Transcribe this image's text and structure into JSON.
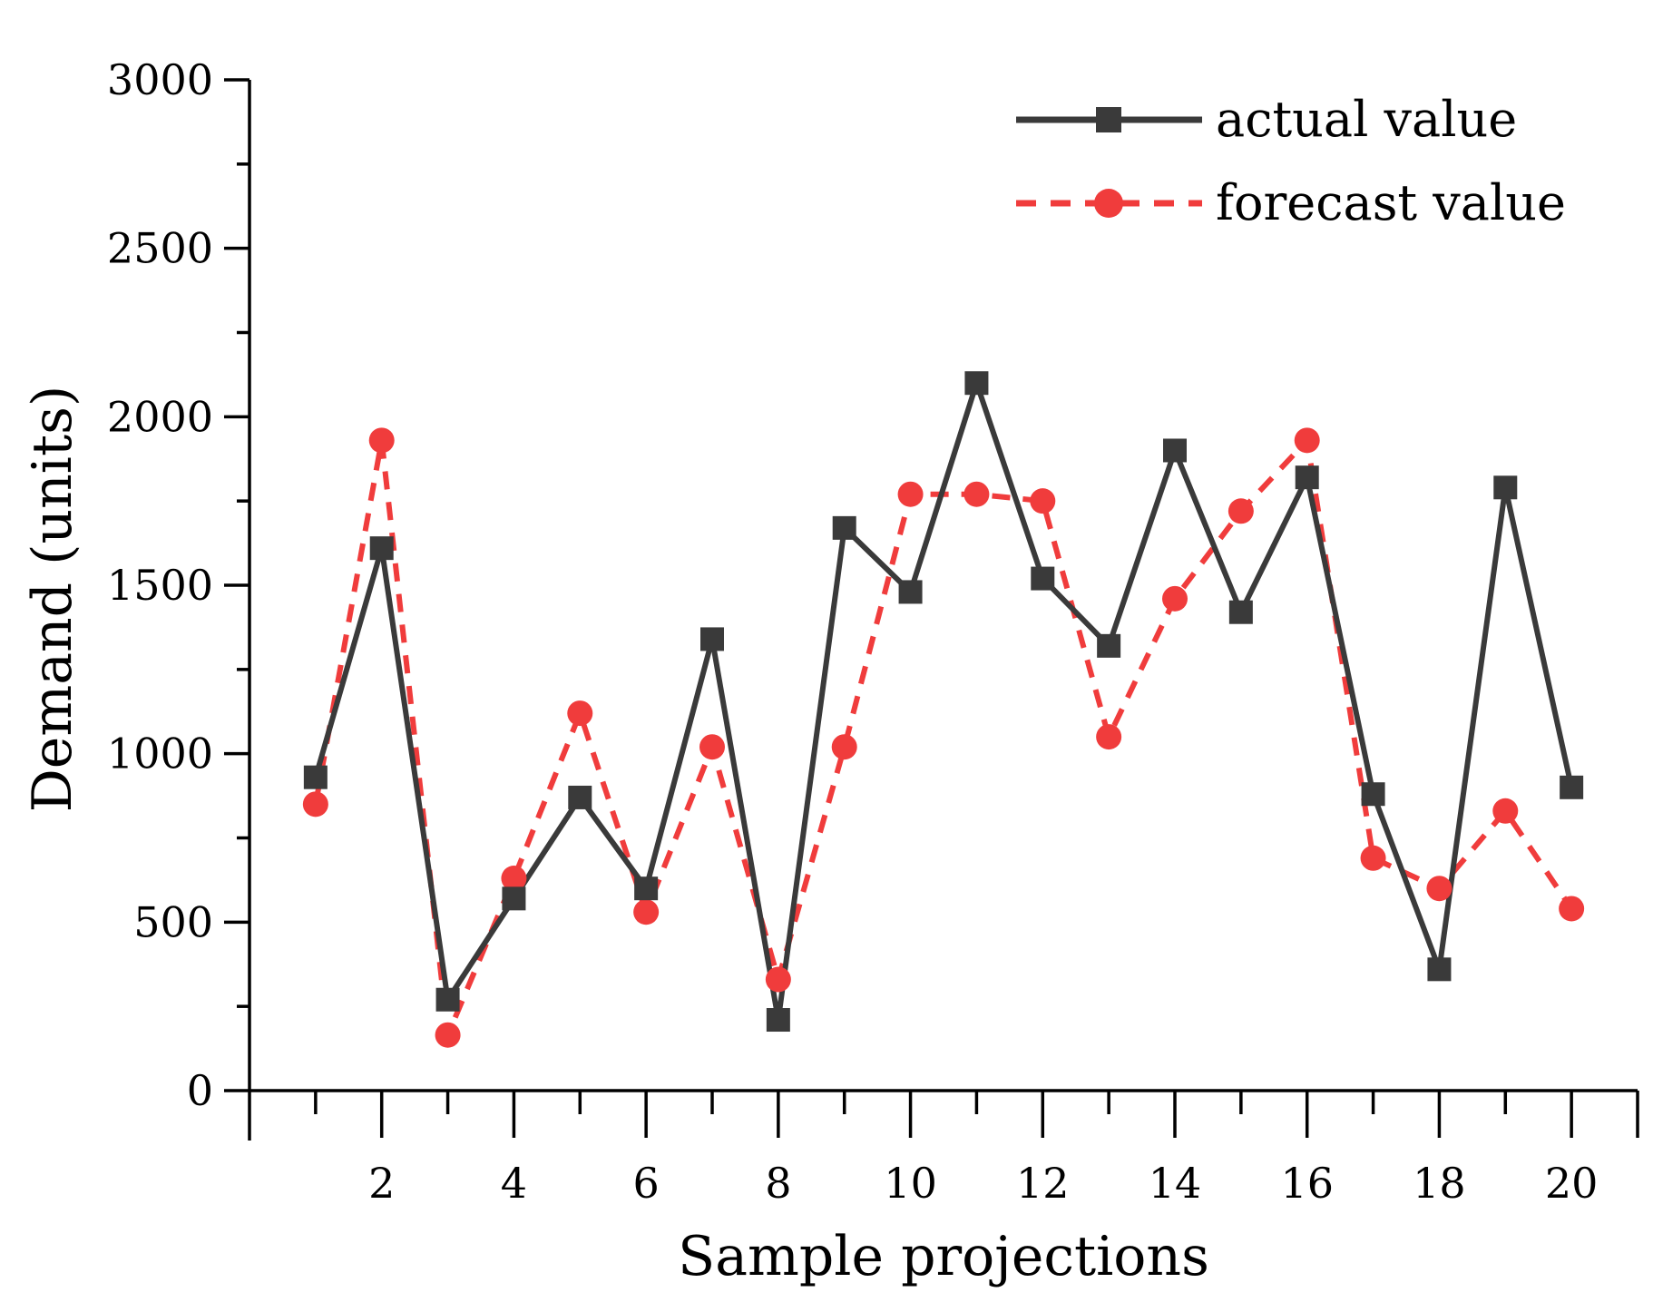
{
  "chart_data": {
    "type": "line",
    "title": "",
    "xlabel": "Sample projections",
    "ylabel": "Demand (units)",
    "xlim": [
      0,
      21
    ],
    "ylim": [
      0,
      3000
    ],
    "x": [
      1,
      2,
      3,
      4,
      5,
      6,
      7,
      8,
      9,
      10,
      11,
      12,
      13,
      14,
      15,
      16,
      17,
      18,
      19,
      20
    ],
    "x_ticks": [
      2,
      4,
      6,
      8,
      10,
      12,
      14,
      16,
      18,
      20
    ],
    "y_ticks": [
      0,
      500,
      1000,
      1500,
      2000,
      2500,
      3000
    ],
    "legend_position": "top-right",
    "series": [
      {
        "name": "actual value",
        "color": "#3a3a3a",
        "style": "solid",
        "marker": "square",
        "values": [
          930,
          1610,
          270,
          570,
          870,
          600,
          1340,
          210,
          1670,
          1480,
          2100,
          1520,
          1320,
          1900,
          1420,
          1820,
          880,
          360,
          1790,
          900
        ]
      },
      {
        "name": "forecast value",
        "color": "#f03c3c",
        "style": "dashed",
        "marker": "circle",
        "values": [
          850,
          1930,
          165,
          630,
          1120,
          530,
          1020,
          330,
          1020,
          1770,
          1770,
          1750,
          1050,
          1460,
          1720,
          1930,
          690,
          600,
          830,
          540
        ]
      }
    ]
  }
}
